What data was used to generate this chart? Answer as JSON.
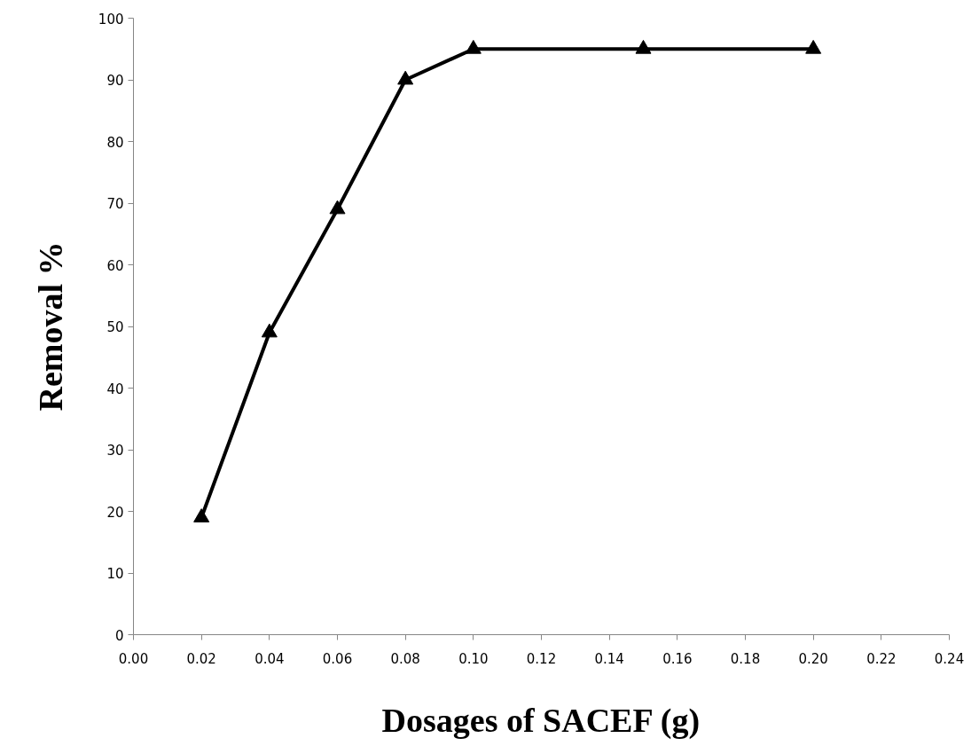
{
  "chart_data": {
    "type": "line",
    "xlabel": "Dosages of SACEF (g)",
    "ylabel": "Removal %",
    "x": [
      0.02,
      0.04,
      0.06,
      0.08,
      0.1,
      0.15,
      0.2
    ],
    "series": [
      {
        "color": "#000000",
        "values": [
          19,
          49,
          69,
          90,
          95,
          95,
          95
        ]
      }
    ],
    "xlim": [
      0,
      0.24
    ],
    "xticks": [
      {
        "value": 0,
        "label": "0.00"
      },
      {
        "value": 0.02,
        "label": "0.02"
      },
      {
        "value": 0.04,
        "label": "0.04"
      },
      {
        "value": 0.06,
        "label": "0.06"
      },
      {
        "value": 0.08,
        "label": "0.08"
      },
      {
        "value": 0.1,
        "label": "0.10"
      },
      {
        "value": 0.12,
        "label": "0.12"
      },
      {
        "value": 0.14,
        "label": "0.14"
      },
      {
        "value": 0.16,
        "label": "0.16"
      },
      {
        "value": 0.18,
        "label": "0.18"
      },
      {
        "value": 0.2,
        "label": "0.20"
      },
      {
        "value": 0.22,
        "label": "0.22"
      },
      {
        "value": 0.24,
        "label": "0.24"
      }
    ],
    "ylim": [
      0,
      100
    ],
    "yticks": [
      0,
      10,
      20,
      30,
      40,
      50,
      60,
      70,
      80,
      90,
      100
    ],
    "grid": false,
    "marker": "triangle",
    "line_style": "solid"
  }
}
